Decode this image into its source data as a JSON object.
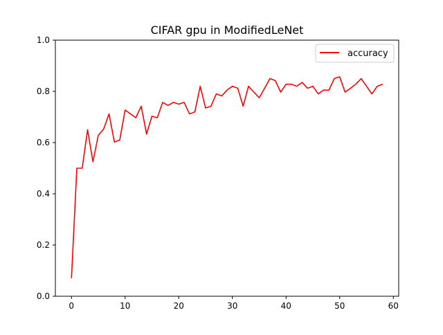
{
  "chart_data": {
    "type": "line",
    "title": "CIFAR gpu in ModifiedLeNet",
    "xlabel": "",
    "ylabel": "",
    "xlim": [
      -3,
      61
    ],
    "ylim": [
      0.0,
      1.0
    ],
    "x_ticks": [
      0,
      10,
      20,
      30,
      40,
      50,
      60
    ],
    "y_ticks": [
      0.0,
      0.2,
      0.4,
      0.6,
      0.8,
      1.0
    ],
    "x_tick_labels": [
      "0",
      "10",
      "20",
      "30",
      "40",
      "50",
      "60"
    ],
    "y_tick_labels": [
      "0.0",
      "0.2",
      "0.4",
      "0.6",
      "0.8",
      "1.0"
    ],
    "grid": false,
    "legend_position": "top-right",
    "series": [
      {
        "name": "accuracy",
        "color": "#ff0000",
        "x": [
          0,
          1,
          2,
          3,
          4,
          5,
          6,
          7,
          8,
          9,
          10,
          11,
          12,
          13,
          14,
          15,
          16,
          17,
          18,
          19,
          20,
          21,
          22,
          23,
          24,
          25,
          26,
          27,
          28,
          29,
          30,
          31,
          32,
          33,
          34,
          35,
          36,
          37,
          38,
          39,
          40,
          41,
          42,
          43,
          44,
          45,
          46,
          47,
          48,
          49,
          50,
          51,
          52,
          53,
          54,
          55,
          56,
          57,
          58
        ],
        "y": [
          0.07,
          0.5,
          0.5,
          0.65,
          0.525,
          0.628,
          0.653,
          0.712,
          0.602,
          0.61,
          0.727,
          0.712,
          0.697,
          0.742,
          0.633,
          0.703,
          0.697,
          0.757,
          0.745,
          0.757,
          0.75,
          0.757,
          0.712,
          0.72,
          0.82,
          0.735,
          0.742,
          0.79,
          0.782,
          0.805,
          0.82,
          0.812,
          0.742,
          0.82,
          0.797,
          0.775,
          0.812,
          0.85,
          0.842,
          0.797,
          0.828,
          0.828,
          0.82,
          0.835,
          0.812,
          0.82,
          0.79,
          0.805,
          0.805,
          0.85,
          0.857,
          0.797,
          0.812,
          0.828,
          0.85,
          0.82,
          0.79,
          0.82,
          0.828
        ]
      }
    ]
  }
}
